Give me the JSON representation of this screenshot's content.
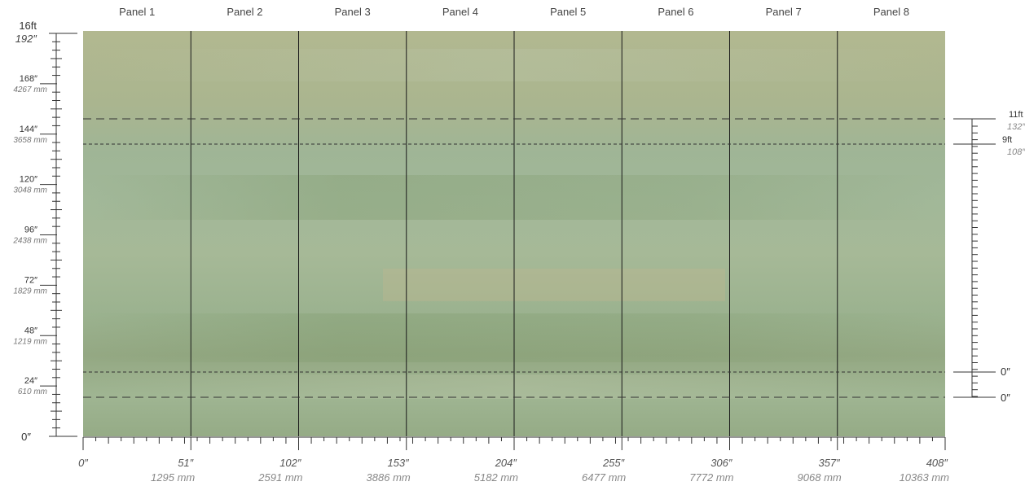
{
  "panels": [
    "Panel 1",
    "Panel 2",
    "Panel 3",
    "Panel 4",
    "Panel 5",
    "Panel 6",
    "Panel 7",
    "Panel 8"
  ],
  "left_scale": {
    "top_ft": "16ft",
    "top_in": "192″",
    "bottom": "0″",
    "ticks": [
      {
        "in": "168″",
        "mm": "4267 mm"
      },
      {
        "in": "144″",
        "mm": "3658 mm"
      },
      {
        "in": "120″",
        "mm": "3048 mm"
      },
      {
        "in": "96″",
        "mm": "2438 mm"
      },
      {
        "in": "72″",
        "mm": "1829 mm"
      },
      {
        "in": "48″",
        "mm": "1219 mm"
      },
      {
        "in": "24″",
        "mm": "610 mm"
      }
    ]
  },
  "bottom_scale": [
    {
      "in": "0″",
      "mm": ""
    },
    {
      "in": "51″",
      "mm": "1295 mm"
    },
    {
      "in": "102″",
      "mm": "2591 mm"
    },
    {
      "in": "153″",
      "mm": "3886 mm"
    },
    {
      "in": "204″",
      "mm": "5182 mm"
    },
    {
      "in": "255″",
      "mm": "6477 mm"
    },
    {
      "in": "306″",
      "mm": "7772 mm"
    },
    {
      "in": "357″",
      "mm": "9068 mm"
    },
    {
      "in": "408″",
      "mm": "10363 mm"
    }
  ],
  "right_scale": {
    "upper_ft": "11ft",
    "upper_in": "132″",
    "lower_ft": "9ft",
    "lower_in": "108″",
    "zero_a": "0″",
    "zero_b": "0″"
  },
  "colors": {
    "mural_base": "#a4b592",
    "mural_top": "#b1b88f",
    "mural_mid": "#9fb89a",
    "mural_low": "#92a882",
    "divider": "#1a1a1a",
    "ruler": "#333333"
  }
}
